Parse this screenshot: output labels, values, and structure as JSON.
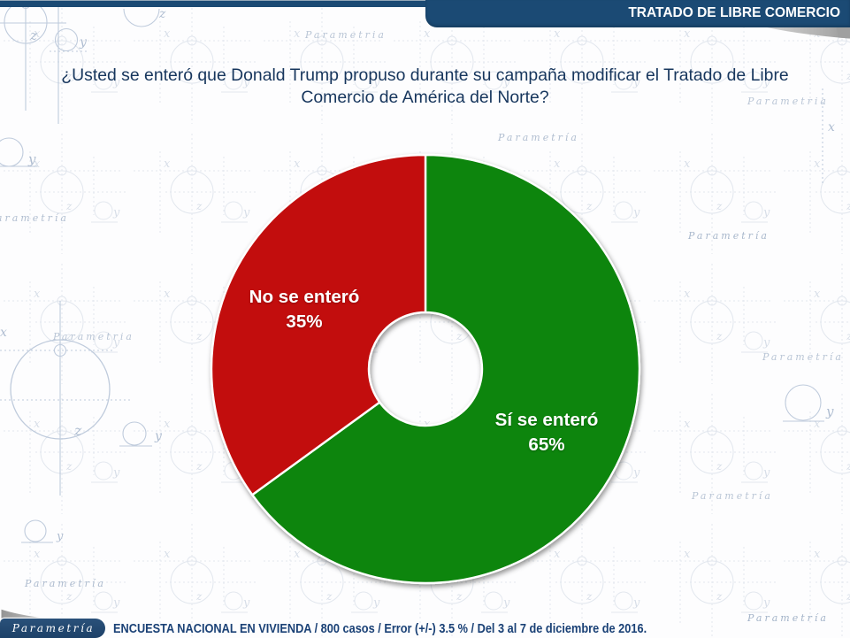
{
  "header": {
    "title": "TRATADO DE LIBRE COMERCIO"
  },
  "question": {
    "line1": "¿Usted se enteró que Donald Trump propuso durante su campaña modificar el Tratado de Libre",
    "line2": "Comercio de América del Norte?"
  },
  "chart_data": {
    "type": "pie",
    "subtype": "donut",
    "title": "¿Usted se enteró que Donald Trump propuso durante su campaña modificar el Tratado de Libre Comercio de América del Norte?",
    "categories": [
      "Sí se enteró",
      "No se enteró"
    ],
    "values": [
      65,
      35
    ],
    "unit": "%",
    "colors": [
      "#0e850e",
      "#c20d0d"
    ],
    "start_angle_deg": 0,
    "direction": "clockwise",
    "labels": [
      {
        "name": "Sí se enteró",
        "value": "65%"
      },
      {
        "name": "No se enteró",
        "value": "35%"
      }
    ],
    "legend_position": "inside",
    "grid": false
  },
  "watermark": {
    "word": "Parametria",
    "word_accented": "Parametría",
    "letters": {
      "x": "x",
      "y": "y",
      "z": "z"
    }
  },
  "footer": {
    "logo": "Parametría",
    "caption": "ENCUESTA NACIONAL EN VIVIENDA / 800 casos / Error (+/-) 3.5 % / Del 3 al 7 de diciembre de 2016.",
    "watermark_word": "Parametría"
  },
  "colors": {
    "header_navy": "#1b4a74",
    "question_text": "#17365d",
    "slice_green": "#0e850e",
    "slice_red": "#c20d0d",
    "footer_text": "#1a4176",
    "fold_gray": "#a9a9a9"
  }
}
